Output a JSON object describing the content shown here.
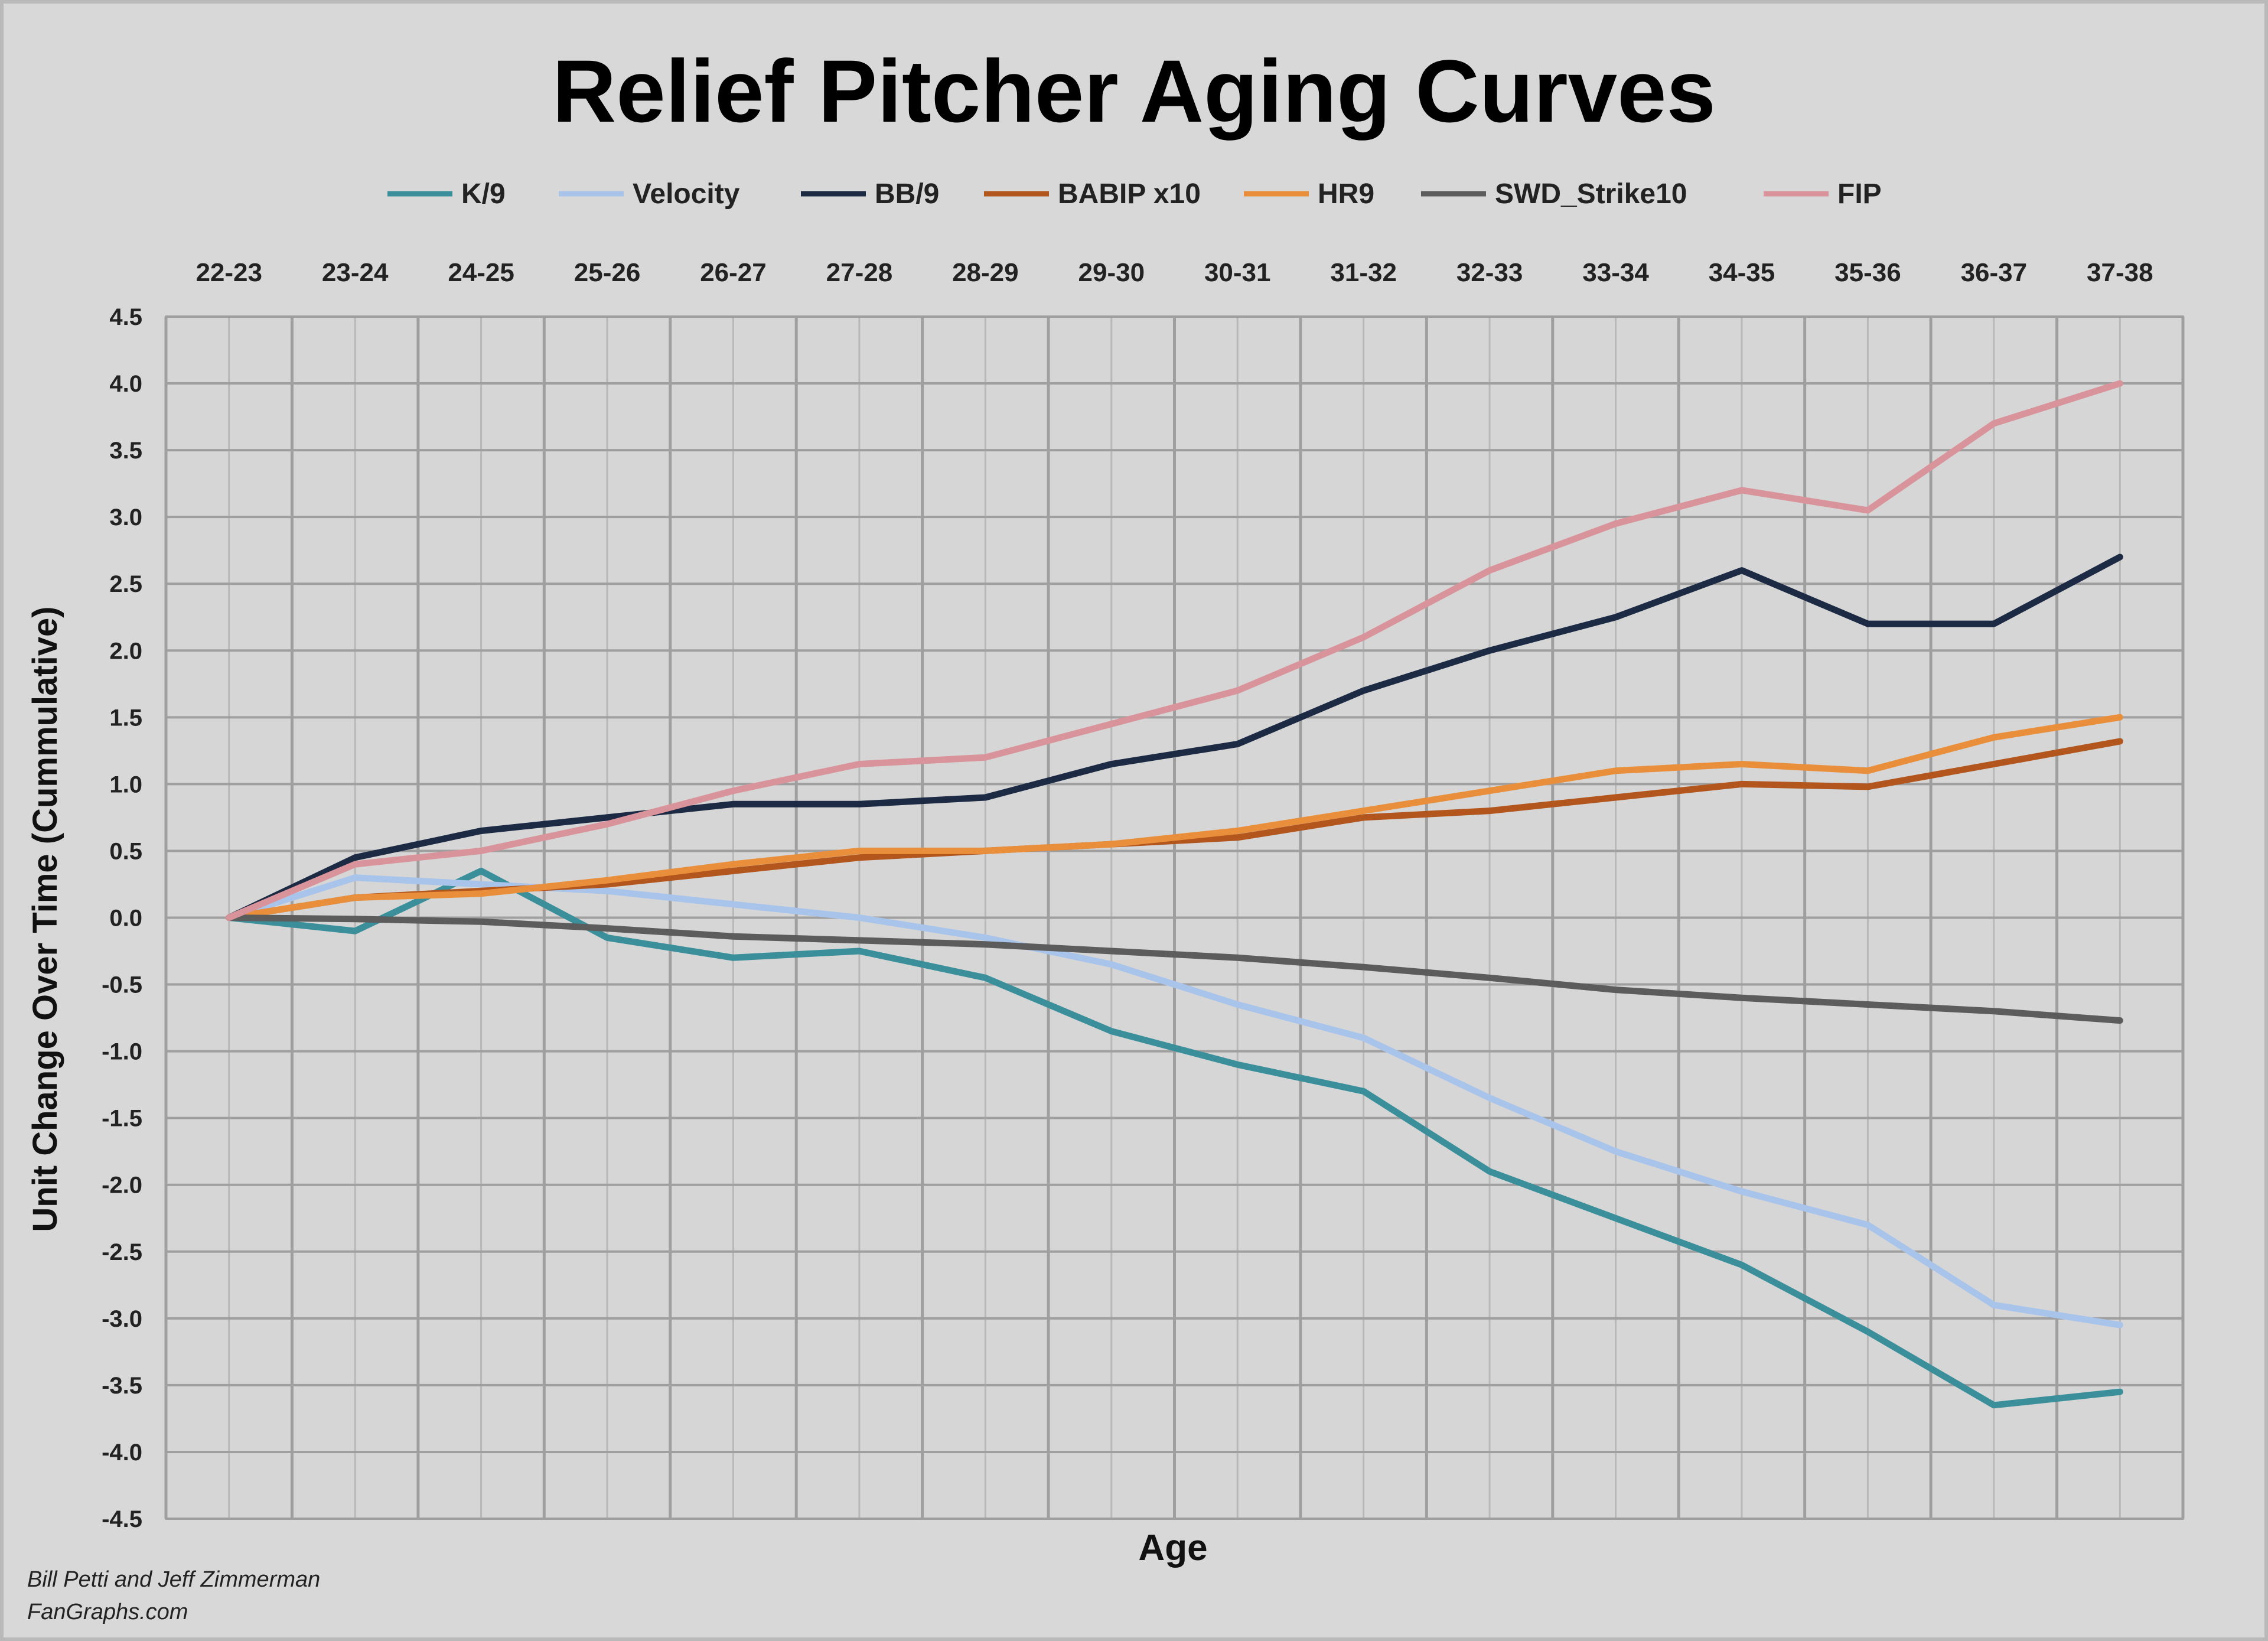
{
  "chart_data": {
    "type": "line",
    "title": "Relief Pitcher Aging Curves",
    "xlabel": "Age",
    "ylabel": "Unit Change Over Time (Cummulative)",
    "categories": [
      "22-23",
      "23-24",
      "24-25",
      "25-26",
      "26-27",
      "27-28",
      "28-29",
      "29-30",
      "30-31",
      "31-32",
      "32-33",
      "33-34",
      "34-35",
      "35-36",
      "36-37",
      "37-38"
    ],
    "x_tick_positions": [
      "top"
    ],
    "ylim": [
      -4.5,
      4.5
    ],
    "yticks": [
      "4.5",
      "4.0",
      "3.5",
      "3.0",
      "2.5",
      "2.0",
      "1.5",
      "1.0",
      "0.5",
      "0.0",
      "-0.5",
      "-1.0",
      "-1.5",
      "-2.0",
      "-2.5",
      "-3.0",
      "-3.5",
      "-4.0",
      "-4.5"
    ],
    "grid": true,
    "legend_position": "top",
    "series": [
      {
        "name": "K/9",
        "color": "#3a8f9b",
        "values": [
          0.0,
          -0.1,
          0.35,
          -0.15,
          -0.3,
          -0.25,
          -0.45,
          -0.85,
          -1.1,
          -1.3,
          -1.9,
          -2.25,
          -2.6,
          -3.1,
          -3.65,
          -3.55
        ]
      },
      {
        "name": "Velocity",
        "color": "#a9c4ea",
        "values": [
          0.0,
          0.3,
          0.25,
          0.2,
          0.1,
          0.0,
          -0.15,
          -0.35,
          -0.65,
          -0.9,
          -1.35,
          -1.75,
          -2.05,
          -2.3,
          -2.9,
          -3.05
        ]
      },
      {
        "name": "BB/9",
        "color": "#1c2a44",
        "values": [
          0.0,
          0.45,
          0.65,
          0.75,
          0.85,
          0.85,
          0.9,
          1.15,
          1.3,
          1.7,
          2.0,
          2.25,
          2.6,
          2.2,
          2.2,
          2.7
        ]
      },
      {
        "name": "BABIP x10",
        "color": "#b2561d",
        "values": [
          0.0,
          0.15,
          0.2,
          0.25,
          0.35,
          0.45,
          0.5,
          0.55,
          0.6,
          0.75,
          0.8,
          0.9,
          1.0,
          0.98,
          1.15,
          1.32
        ]
      },
      {
        "name": "HR9",
        "color": "#e98f3b",
        "values": [
          0.0,
          0.15,
          0.18,
          0.28,
          0.4,
          0.5,
          0.5,
          0.55,
          0.65,
          0.8,
          0.95,
          1.1,
          1.15,
          1.1,
          1.35,
          1.5
        ]
      },
      {
        "name": "SWD_Strike10",
        "color": "#5c5c5c",
        "values": [
          0.0,
          -0.01,
          -0.03,
          -0.08,
          -0.14,
          -0.17,
          -0.2,
          -0.25,
          -0.3,
          -0.37,
          -0.45,
          -0.54,
          -0.6,
          -0.65,
          -0.7,
          -0.77
        ]
      },
      {
        "name": "FIP",
        "color": "#d9939a",
        "values": [
          0.0,
          0.4,
          0.5,
          0.7,
          0.95,
          1.15,
          1.2,
          1.45,
          1.7,
          2.1,
          2.6,
          2.95,
          3.2,
          3.05,
          3.7,
          4.0
        ]
      }
    ]
  },
  "credit": {
    "line1": "Bill Petti and Jeff Zimmerman",
    "line2": "FanGraphs.com"
  }
}
